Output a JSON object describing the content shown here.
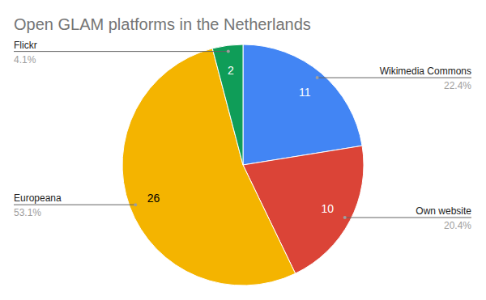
{
  "chart_data": {
    "type": "pie",
    "title": "Open GLAM platforms in the Netherlands",
    "categories": [
      "Wikimedia Commons",
      "Own website",
      "Europeana",
      "Flickr"
    ],
    "values": [
      11,
      10,
      26,
      2
    ],
    "colors": [
      "#4285f4",
      "#db4437",
      "#f4b400",
      "#0f9d58"
    ],
    "data_labels": true,
    "percentages": [
      {
        "value": 22.4,
        "label": "22.4%"
      },
      {
        "value": 20.4,
        "label": "20.4%"
      },
      {
        "value": 53.1,
        "label": "53.1%"
      },
      {
        "value": 4.1,
        "label": "4.1%"
      }
    ]
  }
}
